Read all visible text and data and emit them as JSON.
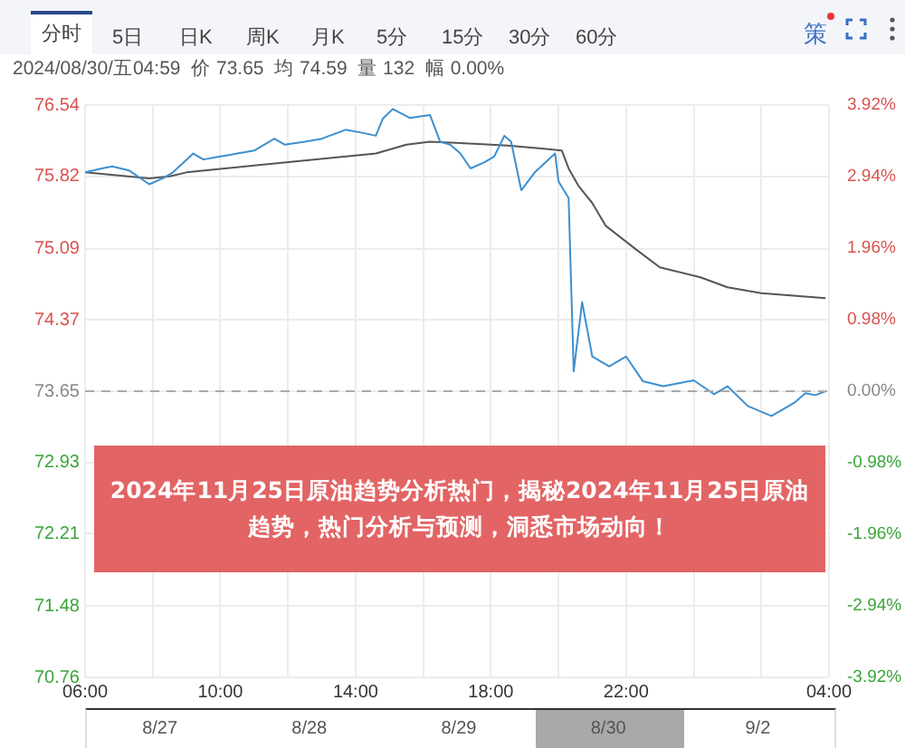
{
  "chart_data": {
    "type": "line",
    "title": "2024年11月25日原油趋势分析热门，揭秘2024年11月25日原油趋势，热门分析与预测，洞悉市场动向！",
    "subtitle": "2024/08/30/五04:59  价 73.65  均 74.59  量 132  幅 0.00%",
    "annotations": [
      "分时",
      "5日",
      "日K",
      "周K",
      "月K",
      "5分",
      "15分",
      "30分",
      "60分",
      "策",
      "8/27",
      "8/28",
      "8/29",
      "8/30",
      "9/2"
    ],
    "series": [
      {
        "color": "#3d8fcf",
        "x": [
          "2024-08-29T06:00",
          "2024-08-29T06:30",
          "2024-08-29T06:48",
          "2024-08-29T07:18",
          "2024-08-29T07:54",
          "2024-08-29T08:18",
          "2024-08-29T08:36",
          "2024-08-29T09:12",
          "2024-08-29T09:30",
          "2024-08-29T10:00",
          "2024-08-29T10:30",
          "2024-08-29T11:00",
          "2024-08-29T11:36",
          "2024-08-29T11:54",
          "2024-08-29T12:30",
          "2024-08-29T13:00",
          "2024-08-29T13:42",
          "2024-08-29T14:12",
          "2024-08-29T14:36",
          "2024-08-29T14:48",
          "2024-08-29T15:06",
          "2024-08-29T15:36",
          "2024-08-29T16:12",
          "2024-08-29T16:30",
          "2024-08-29T16:48",
          "2024-08-29T17:06",
          "2024-08-29T17:24",
          "2024-08-29T17:48",
          "2024-08-29T18:06",
          "2024-08-29T18:24",
          "2024-08-29T18:36",
          "2024-08-29T18:54",
          "2024-08-29T19:18",
          "2024-08-29T19:54",
          "2024-08-29T20:00",
          "2024-08-29T20:18",
          "2024-08-29T20:27",
          "2024-08-29T20:42",
          "2024-08-29T21:00",
          "2024-08-29T21:30",
          "2024-08-29T22:00",
          "2024-08-29T22:30",
          "2024-08-29T23:06",
          "2024-08-30T00:00",
          "2024-08-30T00:36",
          "2024-08-30T01:00",
          "2024-08-30T01:36",
          "2024-08-30T02:18",
          "2024-08-30T02:36",
          "2024-08-30T03:00",
          "2024-08-30T03:18",
          "2024-08-30T03:36",
          "2024-08-30T03:54"
        ],
        "values": [
          75.86,
          75.9,
          75.92,
          75.88,
          75.74,
          75.8,
          75.86,
          76.05,
          75.99,
          76.02,
          76.05,
          76.08,
          76.2,
          76.14,
          76.17,
          76.2,
          76.29,
          76.26,
          76.23,
          76.4,
          76.5,
          76.41,
          76.44,
          76.17,
          76.14,
          76.05,
          75.9,
          75.96,
          76.02,
          76.23,
          76.17,
          75.68,
          75.86,
          76.05,
          75.77,
          75.6,
          73.85,
          74.55,
          74.0,
          73.9,
          74.0,
          73.75,
          73.7,
          73.76,
          73.62,
          73.7,
          73.5,
          73.4,
          73.46,
          73.54,
          73.63,
          73.61,
          73.65
        ]
      },
      {
        "color": "#555555",
        "x": [
          "2024-08-29T06:00",
          "2024-08-29T07:54",
          "2024-08-29T08:30",
          "2024-08-29T09:00",
          "2024-08-29T11:00",
          "2024-08-29T14:36",
          "2024-08-29T15:30",
          "2024-08-29T16:12",
          "2024-08-29T17:30",
          "2024-08-29T18:30",
          "2024-08-29T19:30",
          "2024-08-29T20:06",
          "2024-08-29T20:18",
          "2024-08-29T20:36",
          "2024-08-29T21:00",
          "2024-08-29T21:24",
          "2024-08-29T22:18",
          "2024-08-29T23:00",
          "2024-08-30T00:12",
          "2024-08-30T01:00",
          "2024-08-30T02:00",
          "2024-08-30T03:54"
        ],
        "values": [
          75.86,
          75.8,
          75.82,
          75.86,
          75.93,
          76.05,
          76.14,
          76.17,
          76.15,
          76.13,
          76.1,
          76.08,
          75.9,
          75.72,
          75.55,
          75.32,
          75.08,
          74.9,
          74.8,
          74.7,
          74.64,
          74.59
        ]
      }
    ],
    "xlim": [
      "2024-08-29T06:00",
      "2024-08-30T04:00"
    ],
    "xticks": [
      {
        "value": "2024-08-29T06:00",
        "label": "06:00"
      },
      {
        "value": "2024-08-29T08:00",
        "label": null
      },
      {
        "value": "2024-08-29T10:00",
        "label": "10:00"
      },
      {
        "value": "2024-08-29T12:00",
        "label": null
      },
      {
        "value": "2024-08-29T14:00",
        "label": "14:00"
      },
      {
        "value": "2024-08-29T16:00",
        "label": null
      },
      {
        "value": "2024-08-29T18:00",
        "label": "18:00"
      },
      {
        "value": "2024-08-29T20:00",
        "label": null
      },
      {
        "value": "2024-08-29T22:00",
        "label": "22:00"
      },
      {
        "value": "2024-08-30T00:00",
        "label": null
      },
      {
        "value": "2024-08-30T02:00",
        "label": null
      },
      {
        "value": "2024-08-30T04:00",
        "label": "04:00"
      }
    ],
    "ylim": [
      70.76,
      76.54
    ],
    "yticks": [
      70.76,
      71.48,
      72.21,
      72.93,
      73.65,
      74.37,
      75.09,
      75.82,
      76.54
    ],
    "y2lim": [
      -3.92,
      3.92
    ],
    "y2ticks": [
      {
        "value": -3.92,
        "label": "-3.92%"
      },
      {
        "value": -2.94,
        "label": "-2.94%"
      },
      {
        "value": -1.96,
        "label": "-1.96%"
      },
      {
        "value": -0.98,
        "label": "-0.98%"
      },
      {
        "value": 0,
        "label": "0.00%"
      },
      {
        "value": 0.98,
        "label": "0.98%"
      },
      {
        "value": 1.96,
        "label": "1.96%"
      },
      {
        "value": 2.94,
        "label": "2.94%"
      },
      {
        "value": 3.92,
        "label": "3.92%"
      }
    ],
    "ref_lines": [
      {
        "axis": "y",
        "value": 73.65,
        "color": "#aaaaaa",
        "line_style": "dashed"
      }
    ],
    "grid": true,
    "legend": false,
    "marker": "none",
    "line_style": "solid"
  }
}
